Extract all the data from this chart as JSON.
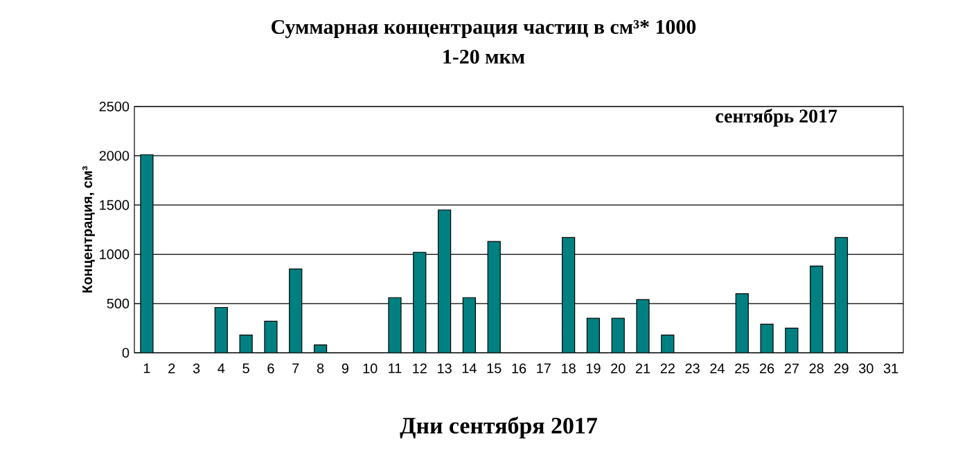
{
  "chart_data": {
    "type": "bar",
    "title": "Суммарная концентрация частиц в см³* 1000",
    "subtitle": "1-20 мкм",
    "xlabel": "Дни сентября 2017",
    "ylabel": "Концентрация, см³",
    "annotations": [
      "сентябрь  2017"
    ],
    "categories": [
      "1",
      "2",
      "3",
      "4",
      "5",
      "6",
      "7",
      "8",
      "9",
      "10",
      "11",
      "12",
      "13",
      "14",
      "15",
      "16",
      "17",
      "18",
      "19",
      "20",
      "21",
      "22",
      "23",
      "24",
      "25",
      "26",
      "27",
      "28",
      "29",
      "30",
      "31"
    ],
    "values": [
      2010,
      null,
      null,
      460,
      180,
      320,
      850,
      80,
      null,
      null,
      560,
      1020,
      1450,
      560,
      1130,
      null,
      null,
      1170,
      350,
      350,
      540,
      180,
      null,
      null,
      600,
      290,
      250,
      880,
      1170,
      null,
      null
    ],
    "color": "#008080",
    "ylim": [
      0,
      2500
    ],
    "yticks": [
      0,
      500,
      1000,
      1500,
      2000,
      2500
    ],
    "grid": "y"
  }
}
